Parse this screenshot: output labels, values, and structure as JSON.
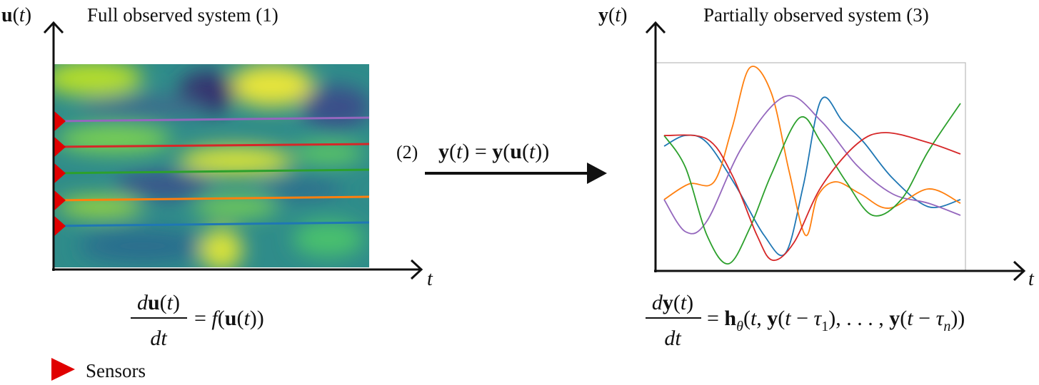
{
  "left": {
    "axis_label": [
      "u",
      "(",
      "t",
      ")"
    ],
    "title": "Full observed system (1)",
    "time_label": "t",
    "equation": {
      "numerator": [
        "d",
        "u",
        "(",
        "t",
        ")"
      ],
      "denominator": "dt",
      "rhs": [
        "= ",
        "f",
        "(",
        "u",
        "(",
        "t",
        "))"
      ]
    },
    "legend": "Sensors"
  },
  "middle": {
    "label": "(2)",
    "equation": [
      "y",
      "(",
      "t",
      ") = ",
      "y",
      "(",
      "u",
      "(",
      "t",
      "))"
    ]
  },
  "right": {
    "axis_label": [
      "y",
      "(",
      "t",
      ")"
    ],
    "title": "Partially observed system (3)",
    "time_label": "t",
    "equation": {
      "numerator": [
        "d",
        "y",
        "(",
        "t",
        ")"
      ],
      "denominator": "dt",
      "rhs": [
        "= ",
        "h",
        "θ",
        "(",
        "t",
        ", ",
        "y",
        "(",
        "t",
        " − ",
        "τ",
        "1",
        "), . . . , ",
        "y",
        "(",
        "t",
        " − ",
        "τ",
        "n",
        "))"
      ]
    }
  }
}
